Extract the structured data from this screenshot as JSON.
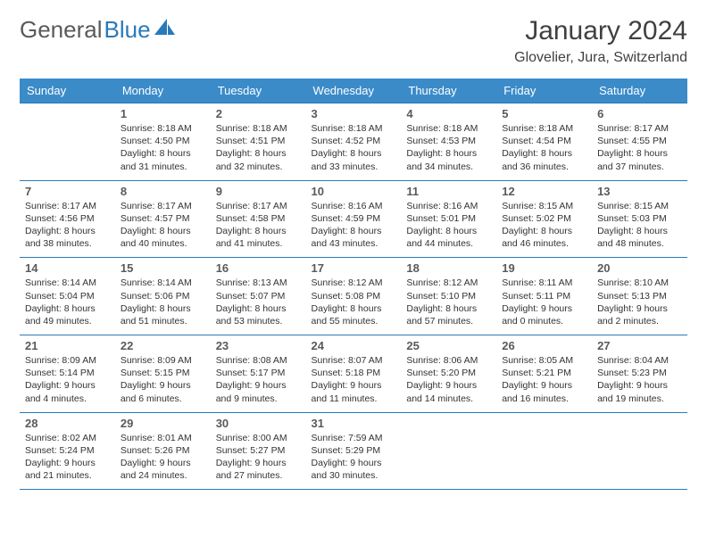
{
  "brand": {
    "part1": "General",
    "part2": "Blue"
  },
  "title": "January 2024",
  "location": "Glovelier, Jura, Switzerland",
  "colors": {
    "header_bg": "#3b8bc9",
    "header_text": "#ffffff",
    "row_border": "#2a7ab9",
    "brand_gray": "#5a5a5a",
    "brand_blue": "#2a7ab9",
    "text": "#333333",
    "background": "#ffffff"
  },
  "weekdays": [
    "Sunday",
    "Monday",
    "Tuesday",
    "Wednesday",
    "Thursday",
    "Friday",
    "Saturday"
  ],
  "weeks": [
    [
      {
        "n": "",
        "sr": "",
        "ss": "",
        "dl": ""
      },
      {
        "n": "1",
        "sr": "8:18 AM",
        "ss": "4:50 PM",
        "dl": "8 hours and 31 minutes."
      },
      {
        "n": "2",
        "sr": "8:18 AM",
        "ss": "4:51 PM",
        "dl": "8 hours and 32 minutes."
      },
      {
        "n": "3",
        "sr": "8:18 AM",
        "ss": "4:52 PM",
        "dl": "8 hours and 33 minutes."
      },
      {
        "n": "4",
        "sr": "8:18 AM",
        "ss": "4:53 PM",
        "dl": "8 hours and 34 minutes."
      },
      {
        "n": "5",
        "sr": "8:18 AM",
        "ss": "4:54 PM",
        "dl": "8 hours and 36 minutes."
      },
      {
        "n": "6",
        "sr": "8:17 AM",
        "ss": "4:55 PM",
        "dl": "8 hours and 37 minutes."
      }
    ],
    [
      {
        "n": "7",
        "sr": "8:17 AM",
        "ss": "4:56 PM",
        "dl": "8 hours and 38 minutes."
      },
      {
        "n": "8",
        "sr": "8:17 AM",
        "ss": "4:57 PM",
        "dl": "8 hours and 40 minutes."
      },
      {
        "n": "9",
        "sr": "8:17 AM",
        "ss": "4:58 PM",
        "dl": "8 hours and 41 minutes."
      },
      {
        "n": "10",
        "sr": "8:16 AM",
        "ss": "4:59 PM",
        "dl": "8 hours and 43 minutes."
      },
      {
        "n": "11",
        "sr": "8:16 AM",
        "ss": "5:01 PM",
        "dl": "8 hours and 44 minutes."
      },
      {
        "n": "12",
        "sr": "8:15 AM",
        "ss": "5:02 PM",
        "dl": "8 hours and 46 minutes."
      },
      {
        "n": "13",
        "sr": "8:15 AM",
        "ss": "5:03 PM",
        "dl": "8 hours and 48 minutes."
      }
    ],
    [
      {
        "n": "14",
        "sr": "8:14 AM",
        "ss": "5:04 PM",
        "dl": "8 hours and 49 minutes."
      },
      {
        "n": "15",
        "sr": "8:14 AM",
        "ss": "5:06 PM",
        "dl": "8 hours and 51 minutes."
      },
      {
        "n": "16",
        "sr": "8:13 AM",
        "ss": "5:07 PM",
        "dl": "8 hours and 53 minutes."
      },
      {
        "n": "17",
        "sr": "8:12 AM",
        "ss": "5:08 PM",
        "dl": "8 hours and 55 minutes."
      },
      {
        "n": "18",
        "sr": "8:12 AM",
        "ss": "5:10 PM",
        "dl": "8 hours and 57 minutes."
      },
      {
        "n": "19",
        "sr": "8:11 AM",
        "ss": "5:11 PM",
        "dl": "9 hours and 0 minutes."
      },
      {
        "n": "20",
        "sr": "8:10 AM",
        "ss": "5:13 PM",
        "dl": "9 hours and 2 minutes."
      }
    ],
    [
      {
        "n": "21",
        "sr": "8:09 AM",
        "ss": "5:14 PM",
        "dl": "9 hours and 4 minutes."
      },
      {
        "n": "22",
        "sr": "8:09 AM",
        "ss": "5:15 PM",
        "dl": "9 hours and 6 minutes."
      },
      {
        "n": "23",
        "sr": "8:08 AM",
        "ss": "5:17 PM",
        "dl": "9 hours and 9 minutes."
      },
      {
        "n": "24",
        "sr": "8:07 AM",
        "ss": "5:18 PM",
        "dl": "9 hours and 11 minutes."
      },
      {
        "n": "25",
        "sr": "8:06 AM",
        "ss": "5:20 PM",
        "dl": "9 hours and 14 minutes."
      },
      {
        "n": "26",
        "sr": "8:05 AM",
        "ss": "5:21 PM",
        "dl": "9 hours and 16 minutes."
      },
      {
        "n": "27",
        "sr": "8:04 AM",
        "ss": "5:23 PM",
        "dl": "9 hours and 19 minutes."
      }
    ],
    [
      {
        "n": "28",
        "sr": "8:02 AM",
        "ss": "5:24 PM",
        "dl": "9 hours and 21 minutes."
      },
      {
        "n": "29",
        "sr": "8:01 AM",
        "ss": "5:26 PM",
        "dl": "9 hours and 24 minutes."
      },
      {
        "n": "30",
        "sr": "8:00 AM",
        "ss": "5:27 PM",
        "dl": "9 hours and 27 minutes."
      },
      {
        "n": "31",
        "sr": "7:59 AM",
        "ss": "5:29 PM",
        "dl": "9 hours and 30 minutes."
      },
      {
        "n": "",
        "sr": "",
        "ss": "",
        "dl": ""
      },
      {
        "n": "",
        "sr": "",
        "ss": "",
        "dl": ""
      },
      {
        "n": "",
        "sr": "",
        "ss": "",
        "dl": ""
      }
    ]
  ],
  "labels": {
    "sunrise": "Sunrise:",
    "sunset": "Sunset:",
    "daylight": "Daylight:"
  }
}
